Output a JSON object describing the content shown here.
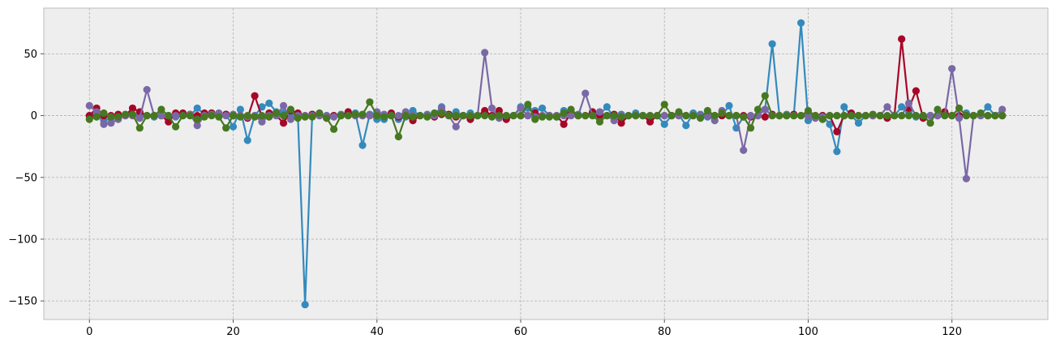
{
  "chart_data": {
    "type": "line",
    "markers": true,
    "grid": true,
    "xlim": [
      -6.35,
      133.35
    ],
    "ylim": [
      -165,
      87
    ],
    "x_ticks": [
      0,
      20,
      40,
      60,
      80,
      100,
      120
    ],
    "y_ticks": [
      -150,
      -100,
      -50,
      0,
      50
    ],
    "series": [
      {
        "color": "#348abd",
        "values": [
          0,
          2,
          -4,
          -2,
          -1,
          0,
          1,
          0,
          0,
          -1,
          0,
          0,
          -1,
          0,
          0,
          6,
          1,
          2,
          1,
          1,
          -9,
          5,
          -20,
          0,
          7,
          10,
          3,
          2,
          0,
          0,
          -153,
          1,
          1,
          0,
          0,
          1,
          1,
          2,
          -24,
          1,
          -3,
          -3,
          0,
          -3,
          -1,
          4,
          0,
          1,
          1,
          7,
          0,
          3,
          0,
          2,
          0,
          2,
          0,
          0,
          -1,
          0,
          7,
          6,
          4,
          6,
          0,
          -1,
          4,
          3,
          1,
          0,
          2,
          1,
          7,
          -2,
          1,
          0,
          2,
          0,
          0,
          0,
          -7,
          0,
          1,
          -8,
          2,
          1,
          -1,
          0,
          0,
          8,
          -10,
          -1,
          0,
          0,
          5,
          58,
          0,
          1,
          0,
          75,
          -4,
          -1,
          0,
          -7,
          -29,
          7,
          0,
          -6,
          0,
          0,
          0,
          -1,
          0,
          7,
          3,
          -1,
          0,
          0,
          0,
          2,
          0,
          0,
          2,
          0,
          1,
          7,
          0,
          0
        ]
      },
      {
        "color": "#a60628",
        "values": [
          0,
          6,
          0,
          0,
          1,
          0,
          6,
          3,
          0,
          0,
          0,
          -5,
          2,
          2,
          1,
          0,
          2,
          2,
          0,
          1,
          0,
          0,
          -2,
          16,
          -1,
          2,
          0,
          -6,
          4,
          2,
          0,
          1,
          0,
          -2,
          0,
          0,
          3,
          0,
          0,
          0,
          0,
          0,
          2,
          -1,
          0,
          -4,
          0,
          0,
          -1,
          1,
          1,
          -1,
          0,
          -3,
          0,
          4,
          0,
          4,
          -3,
          0,
          0,
          0,
          2,
          0,
          0,
          0,
          -7,
          2,
          0,
          0,
          3,
          0,
          0,
          1,
          -6,
          0,
          0,
          0,
          -5,
          0,
          0,
          0,
          0,
          0,
          0,
          0,
          0,
          0,
          0,
          0,
          0,
          0,
          -1,
          0,
          -1,
          1,
          0,
          0,
          1,
          0,
          0,
          0,
          0,
          0,
          -13,
          0,
          2,
          0,
          0,
          0,
          0,
          -2,
          0,
          62,
          6,
          20,
          -2,
          0,
          0,
          3,
          0,
          0,
          0,
          0,
          0,
          0,
          0,
          0
        ]
      },
      {
        "color": "#7a68a6",
        "values": [
          8,
          3,
          -7,
          -6,
          -3,
          0,
          0,
          -2,
          21,
          0,
          0,
          0,
          0,
          0,
          1,
          -8,
          0,
          1,
          2,
          0,
          1,
          0,
          -1,
          0,
          -5,
          0,
          0,
          8,
          -3,
          0,
          0,
          0,
          0,
          0,
          -1,
          0,
          0,
          0,
          0,
          0,
          3,
          1,
          0,
          0,
          3,
          0,
          0,
          0,
          0,
          6,
          0,
          -9,
          0,
          0,
          0,
          51,
          6,
          -2,
          0,
          0,
          6,
          0,
          -1,
          0,
          0,
          0,
          0,
          0,
          0,
          18,
          0,
          3,
          0,
          -4,
          0,
          0,
          0,
          0,
          0,
          0,
          0,
          0,
          0,
          0,
          0,
          0,
          0,
          -4,
          4,
          0,
          0,
          -28,
          0,
          0,
          5,
          0,
          0,
          0,
          0,
          0,
          0,
          -2,
          -1,
          0,
          0,
          0,
          0,
          0,
          0,
          0,
          0,
          7,
          0,
          0,
          10,
          0,
          0,
          0,
          0,
          0,
          38,
          -2,
          -51,
          0,
          0,
          0,
          0,
          5
        ]
      },
      {
        "color": "#467821",
        "values": [
          -3,
          -1,
          2,
          -1,
          -1,
          1,
          1,
          -10,
          0,
          0,
          5,
          0,
          -9,
          0,
          0,
          -3,
          -1,
          0,
          -1,
          -10,
          0,
          -1,
          0,
          -1,
          0,
          -1,
          2,
          0,
          5,
          -2,
          -1,
          -1,
          2,
          -2,
          -11,
          0,
          0,
          1,
          1,
          11,
          0,
          -1,
          0,
          -17,
          0,
          -1,
          0,
          -1,
          2,
          2,
          0,
          0,
          0,
          0,
          0,
          0,
          -1,
          0,
          0,
          0,
          0,
          9,
          -3,
          -1,
          -1,
          -1,
          2,
          5,
          0,
          0,
          0,
          -5,
          0,
          0,
          -1,
          0,
          0,
          0,
          0,
          0,
          9,
          0,
          3,
          0,
          0,
          -2,
          4,
          0,
          2,
          0,
          0,
          -1,
          -10,
          5,
          16,
          0,
          0,
          0,
          0,
          0,
          4,
          0,
          -3,
          0,
          0,
          0,
          0,
          0,
          0,
          1,
          0,
          0,
          0,
          0,
          0,
          0,
          0,
          -6,
          5,
          0,
          0,
          6,
          0,
          0,
          2,
          0,
          0,
          0
        ]
      }
    ]
  }
}
